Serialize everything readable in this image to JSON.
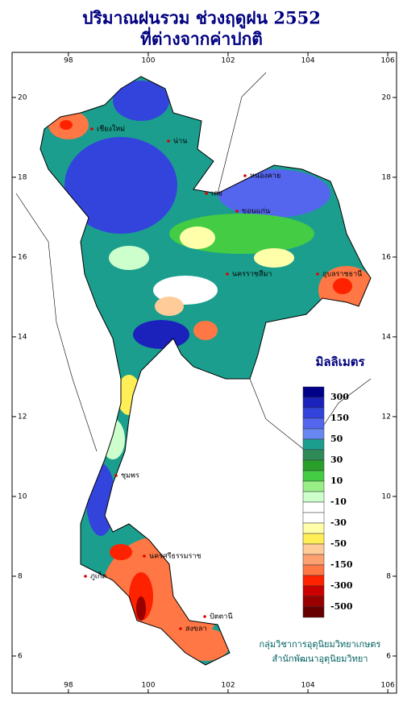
{
  "map": {
    "title": [
      "ปริมาณฝนรวม ช่วงฤดูฝน 2552",
      "ที่ต่างจากค่าปกติ"
    ],
    "xlim": [
      96.59,
      106.22
    ],
    "ylim": [
      5.07,
      21.13
    ],
    "xticks": [
      98,
      100,
      102,
      104,
      106
    ],
    "yticks": [
      6,
      8,
      10,
      12,
      14,
      16,
      18,
      20
    ],
    "legend": {
      "title": "มิลลิเมตร",
      "colors": [
        "#000088",
        "#1a22bb",
        "#3344dd",
        "#5566ee",
        "#6688f0",
        "#1b9e8e",
        "#2e8b57",
        "#2aa02a",
        "#44cc44",
        "#99ee88",
        "#ccffcc",
        "#ffffff",
        "#ffffff",
        "#ffffaa",
        "#ffee55",
        "#ffcc99",
        "#ffa070",
        "#ff7744",
        "#ff2200",
        "#cc0000",
        "#990000",
        "#660000"
      ],
      "labels": [
        "300",
        "150",
        "50",
        "30",
        "10",
        "-10",
        "-30",
        "-50",
        "-150",
        "-300",
        "-500"
      ]
    },
    "places": [
      "เชียงใหม่",
      "น่าน",
      "เลย",
      "หนองคาย",
      "ขอนแก่น",
      "นครราชสีมา",
      "อุบลราชธานี",
      "ชุมพร",
      "นครศรีธรรมราช",
      "สงขลา",
      "ภูเก็ต",
      "ปัตตานี"
    ],
    "credits": [
      "กลุ่มวิชาการอุตุนิยมวิทยาเกษตร",
      "สำนักพัฒนาอุตุนิยมวิทยา"
    ]
  }
}
